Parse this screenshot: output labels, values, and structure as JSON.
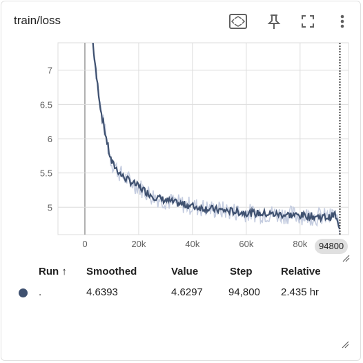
{
  "card": {
    "title": "train/loss",
    "tools": [
      "fit-domain-icon",
      "pin-icon",
      "fullscreen-icon",
      "more-vert-icon"
    ]
  },
  "chart_data": {
    "type": "line",
    "title": "train/loss",
    "xlabel": "",
    "ylabel": "",
    "x_ticks": [
      "0",
      "20k",
      "40k",
      "60k",
      "80k"
    ],
    "y_ticks": [
      "5",
      "5.5",
      "6",
      "6.5",
      "7"
    ],
    "xlim": [
      -10000,
      98000
    ],
    "ylim": [
      4.6,
      7.4
    ],
    "series": [
      {
        "name": ".",
        "color": "#3f5170",
        "raw_color": "#c5cde0",
        "x": [
          3000,
          4000,
          5000,
          6000,
          7000,
          8000,
          9000,
          10000,
          12000,
          14000,
          16000,
          18000,
          20000,
          23000,
          26000,
          30000,
          34000,
          38000,
          42000,
          46000,
          50000,
          55000,
          60000,
          65000,
          70000,
          75000,
          80000,
          84000,
          88000,
          91000,
          93000,
          94800
        ],
        "values": [
          7.4,
          7.0,
          6.7,
          6.4,
          6.2,
          6.0,
          5.8,
          5.65,
          5.55,
          5.45,
          5.4,
          5.35,
          5.3,
          5.22,
          5.15,
          5.1,
          5.06,
          5.03,
          5.0,
          4.98,
          4.96,
          4.94,
          4.92,
          4.91,
          4.9,
          4.89,
          4.88,
          4.87,
          4.86,
          4.85,
          4.9,
          4.64
        ]
      }
    ],
    "hover_step": 94800,
    "hover_label": "94800"
  },
  "table": {
    "headers": [
      "Run ↑",
      "Smoothed",
      "Value",
      "Step",
      "Relative"
    ],
    "rows": [
      {
        "run": ".",
        "smoothed": "4.6393",
        "value": "4.6297",
        "step": "94,800",
        "relative": "2.435 hr",
        "color": "#3f5170"
      }
    ]
  }
}
